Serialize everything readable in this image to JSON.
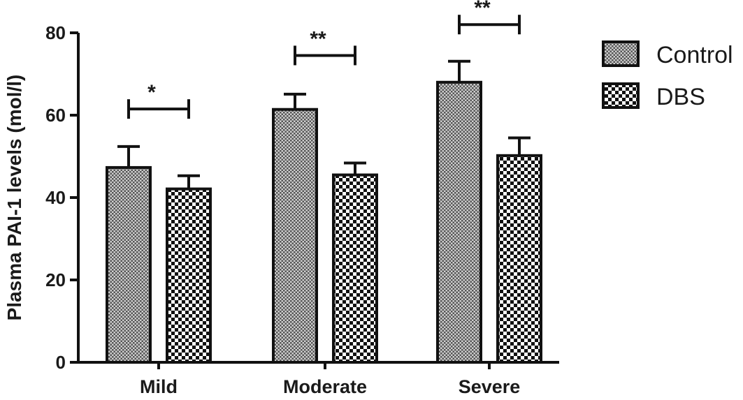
{
  "chart_data": {
    "type": "bar",
    "title": "",
    "xlabel": "",
    "ylabel": "Plasma PAI-1 levels (mol/l)",
    "ylim": [
      0,
      80
    ],
    "yticks": [
      "0",
      "20",
      "40",
      "60",
      "80"
    ],
    "categories": [
      "Mild",
      "Moderate",
      "Severe"
    ],
    "series": [
      {
        "name": "Control",
        "values": [
          47.3,
          61.4,
          68.0
        ],
        "errors": [
          5.1,
          3.7,
          5.1
        ],
        "pattern": "dots"
      },
      {
        "name": "DBS",
        "values": [
          42.1,
          45.5,
          50.2
        ],
        "errors": [
          3.2,
          2.9,
          4.3
        ],
        "pattern": "checker"
      }
    ],
    "significance": [
      {
        "category": "Mild",
        "label": "*",
        "y": 61.5
      },
      {
        "category": "Moderate",
        "label": "**",
        "y": 74.5
      },
      {
        "category": "Severe",
        "label": "**",
        "y": 82
      }
    ],
    "legend_position": "top-right",
    "grid": false
  }
}
